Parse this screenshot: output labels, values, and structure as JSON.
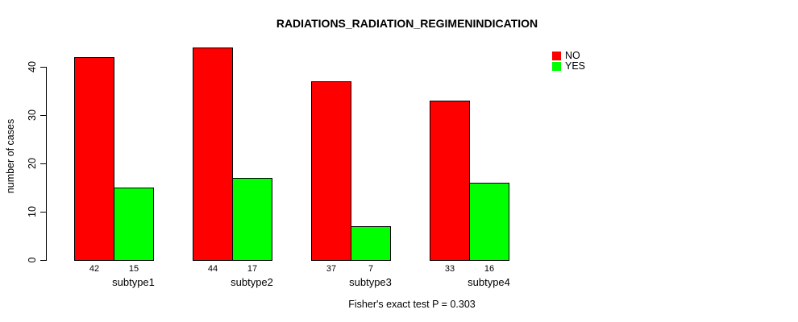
{
  "chart_data": {
    "type": "bar",
    "title": "RADIATIONS_RADIATION_REGIMENINDICATION",
    "ylabel": "number of cases",
    "xlabel": "",
    "categories": [
      "subtype1",
      "subtype2",
      "subtype3",
      "subtype4"
    ],
    "series": [
      {
        "name": "NO",
        "color": "#ff0000",
        "values": [
          42,
          44,
          37,
          33
        ]
      },
      {
        "name": "YES",
        "color": "#00ff00",
        "values": [
          15,
          17,
          7,
          16
        ]
      }
    ],
    "bar_value_labels": [
      [
        "42",
        "15"
      ],
      [
        "44",
        "17"
      ],
      [
        "37",
        "7"
      ],
      [
        "33",
        "16"
      ]
    ],
    "y_ticks": [
      0,
      10,
      20,
      30,
      40
    ],
    "ylim": [
      0,
      44
    ],
    "grid": false,
    "legend_position": "top-right",
    "legend": [
      {
        "label": "NO",
        "color": "#ff0000"
      },
      {
        "label": "YES",
        "color": "#00ff00"
      }
    ],
    "footnote": "Fisher's exact test P = 0.303"
  }
}
